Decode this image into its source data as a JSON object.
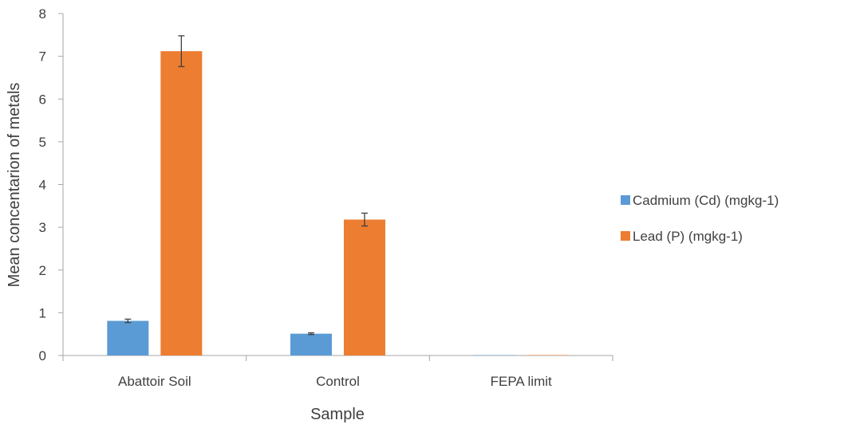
{
  "chart_data": {
    "type": "bar",
    "title": "",
    "xlabel": "Sample",
    "ylabel": "Mean concentarion of metals",
    "categories": [
      "Abattoir Soil",
      "Control",
      "FEPA limit"
    ],
    "ylim": [
      0,
      8
    ],
    "yticks": [
      0,
      1,
      2,
      3,
      4,
      5,
      6,
      7,
      8
    ],
    "grid": false,
    "legend_position": "right",
    "series": [
      {
        "name": "Cadmium (Cd) (mgkg-1)",
        "color": "#5b9bd5",
        "values": [
          0.81,
          0.51,
          0.003
        ],
        "errors": [
          0.04,
          0.02,
          0
        ]
      },
      {
        "name": "Lead (P) (mgkg-1)",
        "color": "#ed7d31",
        "values": [
          7.12,
          3.18,
          0.01
        ],
        "errors": [
          0.36,
          0.15,
          0
        ]
      }
    ]
  }
}
